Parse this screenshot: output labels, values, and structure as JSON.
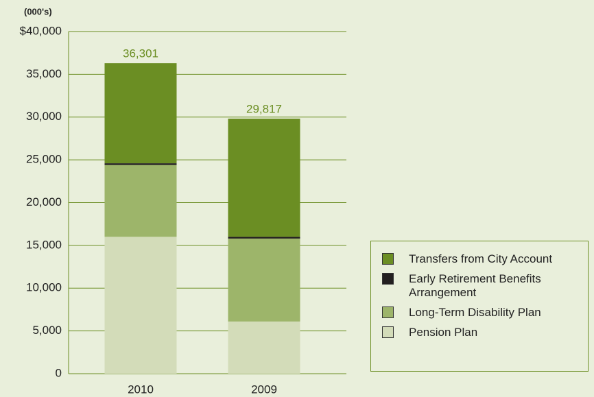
{
  "chart_data": {
    "type": "stacked_bar",
    "y_axis_label": "(000's)",
    "categories": [
      "2010",
      "2009"
    ],
    "series": [
      {
        "name": "Pension Plan",
        "color": "#d3dcb9",
        "values": [
          16000,
          6100
        ]
      },
      {
        "name": "Long-Term Disability Plan",
        "color": "#9db56a",
        "values": [
          8400,
          9700
        ]
      },
      {
        "name": "Early Retirement Benefits Arrangement",
        "color": "#231f20",
        "values": [
          200,
          200
        ]
      },
      {
        "name": "Transfers from City Account",
        "color": "#6b8e23",
        "values": [
          11701,
          13817
        ]
      }
    ],
    "totals": {
      "values": [
        36301,
        29817
      ],
      "value_labels": [
        "36,301",
        "29,817"
      ],
      "color": "#6b8e23"
    },
    "ylim": [
      0,
      40000
    ],
    "yticks": [
      0,
      {
        "value": 5000,
        "label": "5,000"
      },
      {
        "value": 10000,
        "label": "10,000"
      },
      {
        "value": 15000,
        "label": "15,000"
      },
      {
        "value": 20000,
        "label": "20,000"
      },
      {
        "value": 25000,
        "label": "25,000"
      },
      {
        "value": 30000,
        "label": "30,000"
      },
      {
        "value": 35000,
        "label": "35,000"
      },
      {
        "value": 40000,
        "label": "$40,000"
      }
    ],
    "grid": true,
    "grid_color": "#6b8e23",
    "legend": "bottom-right"
  }
}
